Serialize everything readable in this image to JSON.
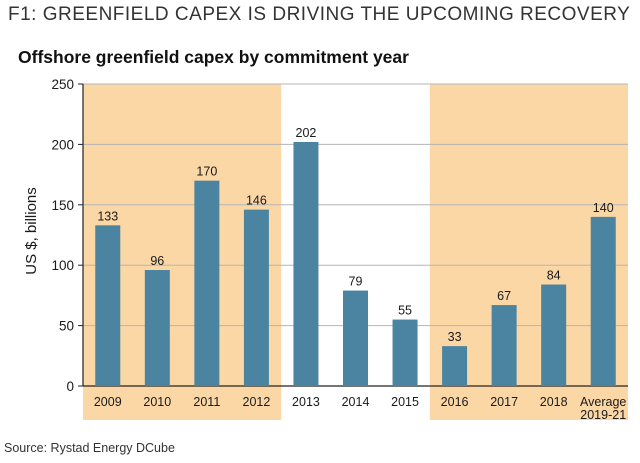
{
  "figure_label": "F1:  GREENFIELD CAPEX IS DRIVING THE UPCOMING RECOVERY",
  "source": "Source: Rystad Energy DCube",
  "colors": {
    "bar": "#4a84a1",
    "highlight": "#fcd7a6",
    "grid": "#b5b5b5",
    "axis": "#222222"
  },
  "chart_data": {
    "type": "bar",
    "title": "Offshore greenfield capex by commitment year",
    "xlabel": "",
    "ylabel": "US $, billions",
    "ylim": [
      0,
      250
    ],
    "yticks": [
      0,
      50,
      100,
      150,
      200,
      250
    ],
    "grid": true,
    "legend": "none",
    "categories": [
      "2009",
      "2010",
      "2011",
      "2012",
      "2013",
      "2014",
      "2015",
      "2016",
      "2017",
      "2018",
      "Average\n2019-21"
    ],
    "values": [
      133,
      96,
      170,
      146,
      202,
      79,
      55,
      33,
      67,
      84,
      140
    ],
    "data_labels": [
      "133",
      "96",
      "170",
      "146",
      "202",
      "79",
      "55",
      "33",
      "67",
      "84",
      "140"
    ],
    "highlighted_categories": [
      "2009",
      "2010",
      "2011",
      "2012",
      "2016",
      "2017",
      "2018",
      "Average\n2019-21"
    ]
  }
}
